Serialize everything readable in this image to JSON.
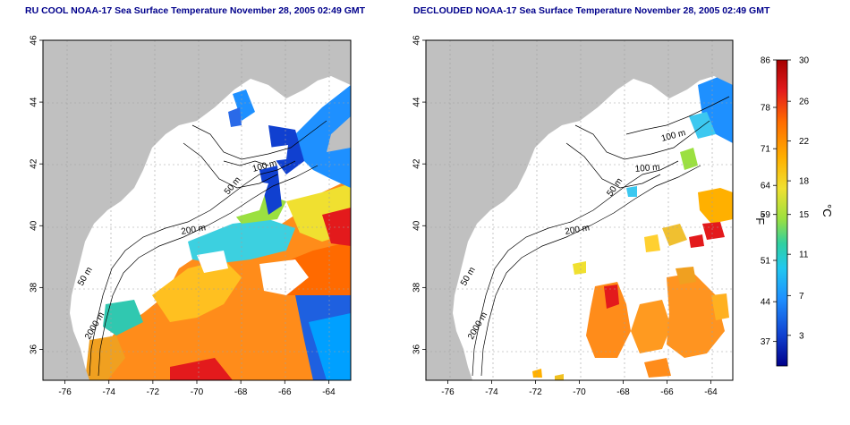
{
  "left_panel": {
    "title": "RU COOL NOAA-17 Sea Surface Temperature November 28, 2005 02:49 GMT",
    "contour_labels": [
      "50 m",
      "100 m",
      "200 m",
      "50 m",
      "2000 m"
    ]
  },
  "right_panel": {
    "title": "DECLOUDED NOAA-17 Sea Surface Temperature November 28, 2005 02:49 GMT",
    "contour_labels": [
      "100 m",
      "100 m",
      "50 m",
      "200 m",
      "50 m",
      "2000 m"
    ]
  },
  "axes": {
    "lon_ticks": [
      "-76",
      "-74",
      "-72",
      "-70",
      "-68",
      "-66",
      "-64"
    ],
    "lat_ticks": [
      "46",
      "44",
      "42",
      "40",
      "38",
      "36"
    ],
    "lon_range": [
      -77,
      -63
    ],
    "lat_range": [
      35,
      46
    ]
  },
  "colorbar": {
    "fahrenheit_label": "°F",
    "celsius_label": "°C",
    "fahrenheit_ticks": [
      "86",
      "78",
      "71",
      "64",
      "59",
      "51",
      "44",
      "37"
    ],
    "celsius_ticks": [
      "30",
      "26",
      "22",
      "18",
      "15",
      "11",
      "7",
      "3"
    ],
    "gradient_colors": [
      "#a50000",
      "#e31a1c",
      "#ff6a00",
      "#ffb000",
      "#f0e030",
      "#9be040",
      "#30d0a0",
      "#20c8f0",
      "#1e90ff",
      "#1040d0",
      "#00008b"
    ]
  },
  "colors": {
    "land": "#c0c0c0",
    "title": "#00008b",
    "grid": "#a0a0a0"
  }
}
